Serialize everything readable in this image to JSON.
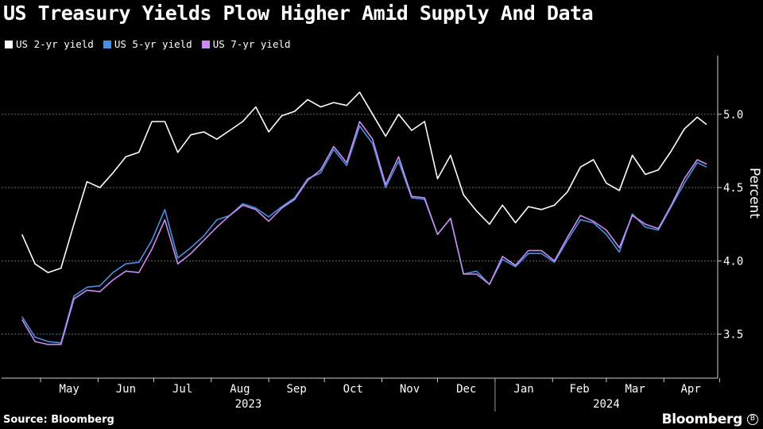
{
  "title": "US Treasury Yields Plow Higher Amid Supply And Data",
  "source": "Source: Bloomberg",
  "brand": "Bloomberg",
  "chart_data": {
    "type": "line",
    "ylabel": "Percent",
    "ylim": [
      3.2,
      5.4
    ],
    "yticks": [
      3.5,
      4.0,
      4.5,
      5.0
    ],
    "ytick_labels": [
      "3.5",
      "4.0",
      "4.5",
      "5.0"
    ],
    "month_ticks": [
      "May",
      "Jun",
      "Jul",
      "Aug",
      "Sep",
      "Oct",
      "Nov",
      "Dec",
      "Jan",
      "Feb",
      "Mar",
      "Apr"
    ],
    "year_labels": [
      "2023",
      "2024"
    ],
    "grid": true,
    "legend_position": "top-left",
    "x": [
      "2023-04-21",
      "2023-04-28",
      "2023-05-05",
      "2023-05-12",
      "2023-05-19",
      "2023-05-26",
      "2023-06-02",
      "2023-06-09",
      "2023-06-16",
      "2023-06-23",
      "2023-06-30",
      "2023-07-07",
      "2023-07-14",
      "2023-07-21",
      "2023-07-28",
      "2023-08-04",
      "2023-08-11",
      "2023-08-18",
      "2023-08-25",
      "2023-09-01",
      "2023-09-08",
      "2023-09-15",
      "2023-09-22",
      "2023-09-29",
      "2023-10-06",
      "2023-10-13",
      "2023-10-20",
      "2023-10-27",
      "2023-11-03",
      "2023-11-10",
      "2023-11-17",
      "2023-11-24",
      "2023-12-01",
      "2023-12-08",
      "2023-12-15",
      "2023-12-22",
      "2023-12-29",
      "2024-01-05",
      "2024-01-12",
      "2024-01-19",
      "2024-01-26",
      "2024-02-02",
      "2024-02-09",
      "2024-02-16",
      "2024-02-23",
      "2024-03-01",
      "2024-03-08",
      "2024-03-15",
      "2024-03-22",
      "2024-03-29",
      "2024-04-05",
      "2024-04-12",
      "2024-04-19",
      "2024-04-24"
    ],
    "series": [
      {
        "name": "US 2-yr yield",
        "color": "#ffffff",
        "values": [
          4.18,
          3.98,
          3.92,
          3.95,
          4.25,
          4.54,
          4.5,
          4.6,
          4.71,
          4.74,
          4.95,
          4.95,
          4.74,
          4.86,
          4.88,
          4.83,
          4.89,
          4.95,
          5.05,
          4.88,
          4.99,
          5.02,
          5.1,
          5.05,
          5.08,
          5.06,
          5.15,
          5.0,
          4.85,
          5.0,
          4.89,
          4.95,
          4.56,
          4.72,
          4.45,
          4.34,
          4.25,
          4.38,
          4.26,
          4.37,
          4.35,
          4.38,
          4.47,
          4.64,
          4.69,
          4.53,
          4.48,
          4.72,
          4.59,
          4.62,
          4.75,
          4.9,
          4.98,
          4.93
        ]
      },
      {
        "name": "US 5-yr yield",
        "color": "#4a90e2",
        "values": [
          3.62,
          3.48,
          3.45,
          3.44,
          3.76,
          3.82,
          3.83,
          3.92,
          3.98,
          3.99,
          4.14,
          4.35,
          4.02,
          4.09,
          4.17,
          4.28,
          4.31,
          4.39,
          4.36,
          4.3,
          4.37,
          4.43,
          4.56,
          4.6,
          4.76,
          4.65,
          4.92,
          4.8,
          4.5,
          4.68,
          4.43,
          4.42,
          4.18,
          4.29,
          3.91,
          3.93,
          3.84,
          4.01,
          3.96,
          4.05,
          4.05,
          3.99,
          4.14,
          4.28,
          4.26,
          4.18,
          4.06,
          4.32,
          4.23,
          4.21,
          4.37,
          4.53,
          4.67,
          4.64
        ]
      },
      {
        "name": "US 7-yr yield",
        "color": "#c98cf3",
        "values": [
          3.6,
          3.45,
          3.43,
          3.43,
          3.74,
          3.8,
          3.79,
          3.87,
          3.93,
          3.92,
          4.08,
          4.28,
          3.98,
          4.05,
          4.14,
          4.23,
          4.31,
          4.38,
          4.35,
          4.27,
          4.36,
          4.42,
          4.55,
          4.62,
          4.78,
          4.67,
          4.95,
          4.83,
          4.52,
          4.71,
          4.44,
          4.43,
          4.18,
          4.29,
          3.91,
          3.91,
          3.84,
          4.03,
          3.97,
          4.07,
          4.07,
          4.0,
          4.16,
          4.31,
          4.27,
          4.21,
          4.09,
          4.31,
          4.25,
          4.22,
          4.38,
          4.56,
          4.69,
          4.66
        ]
      }
    ]
  }
}
